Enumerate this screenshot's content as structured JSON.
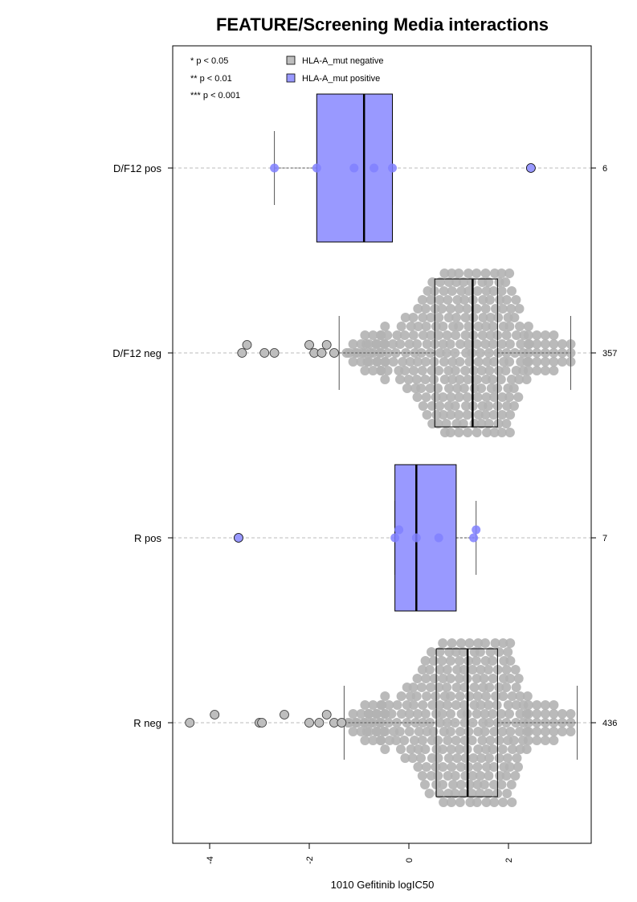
{
  "chart_data": {
    "type": "box",
    "title": "FEATURE/Screening Media interactions",
    "xlabel": "1010 Gefitinib logIC50",
    "ylabel": "",
    "xlim": [
      -4.8,
      3.65
    ],
    "x_ticks": [
      -4,
      -2,
      0,
      2
    ],
    "x_tick_labels": [
      "-4",
      "-2",
      "0",
      "2"
    ],
    "grid": false,
    "significance_legend": [
      "* p < 0.05",
      "** p < 0.01",
      "*** p < 0.001"
    ],
    "legend": {
      "position": "top-left",
      "entries": [
        {
          "label": "HLA-A_mut negative",
          "color": "#bebebe"
        },
        {
          "label": "HLA-A_mut positive",
          "color": "#9999ff"
        }
      ]
    },
    "colors": {
      "negative": "#bebebe",
      "positive": "#9999ff",
      "negative_points": "#b3b3b3",
      "positive_points": "#8080ff"
    },
    "groups": [
      {
        "label": "D/F12 pos",
        "n": "6",
        "mutation": "positive",
        "box": {
          "q1": -1.85,
          "median": -0.9,
          "q3": -0.33,
          "whisker_low": -2.7,
          "whisker_high": -0.33
        },
        "points": [
          -2.7,
          -1.85,
          -1.1,
          -0.7,
          -0.33
        ],
        "outliers": [
          2.45
        ]
      },
      {
        "label": "D/F12 neg",
        "n": "357",
        "mutation": "negative",
        "box": {
          "q1": 0.52,
          "median": 1.28,
          "q3": 1.78,
          "whisker_low": -1.4,
          "whisker_high": 3.25
        },
        "outliers": [
          -3.35,
          -3.25,
          -2.9,
          -2.7,
          -2.0,
          -1.9,
          -1.75,
          -1.65,
          -1.5
        ]
      },
      {
        "label": "R pos",
        "n": "7",
        "mutation": "positive",
        "box": {
          "q1": -0.28,
          "median": 0.15,
          "q3": 0.95,
          "whisker_low": -0.28,
          "whisker_high": 1.35
        },
        "points": [
          -0.28,
          -0.2,
          0.15,
          0.6,
          1.3,
          1.35
        ],
        "outliers": [
          -3.42
        ]
      },
      {
        "label": "R neg",
        "n": "436",
        "mutation": "negative",
        "box": {
          "q1": 0.55,
          "median": 1.18,
          "q3": 1.78,
          "whisker_low": -1.3,
          "whisker_high": 3.38
        },
        "outliers": [
          -4.4,
          -3.9,
          -3.0,
          -2.95,
          -2.5,
          -2.0,
          -1.8,
          -1.65,
          -1.5,
          -1.35
        ]
      }
    ]
  }
}
